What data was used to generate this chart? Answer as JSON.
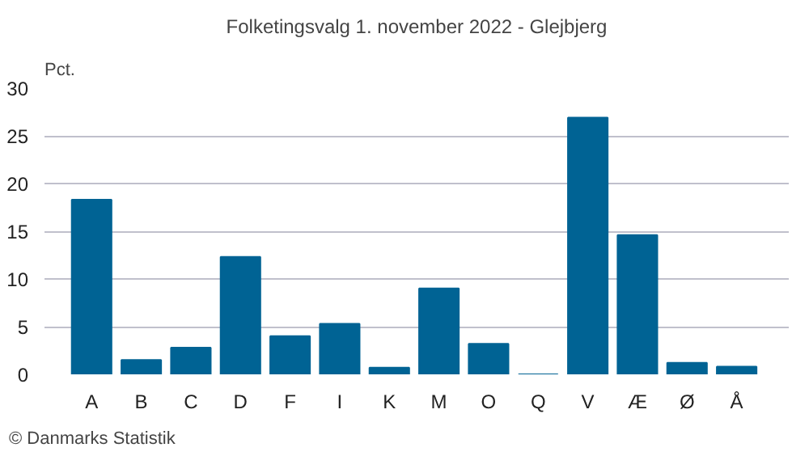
{
  "chart_data": {
    "type": "bar",
    "title": "Folketingsvalg 1. november 2022 - Glejbjerg",
    "ylabel": "Pct.",
    "categories": [
      "A",
      "B",
      "C",
      "D",
      "F",
      "I",
      "K",
      "M",
      "O",
      "Q",
      "V",
      "Æ",
      "Ø",
      "Å"
    ],
    "values": [
      18.3,
      1.5,
      2.8,
      12.3,
      4.0,
      5.3,
      0.7,
      9.0,
      3.2,
      0,
      26.9,
      14.6,
      1.2,
      0.8
    ],
    "color": "#006394",
    "ylim": [
      0,
      30
    ],
    "yticks": [
      0,
      5,
      10,
      15,
      20,
      25,
      30
    ],
    "grid": "y",
    "annotations": [
      "© Danmarks Statistik"
    ]
  }
}
